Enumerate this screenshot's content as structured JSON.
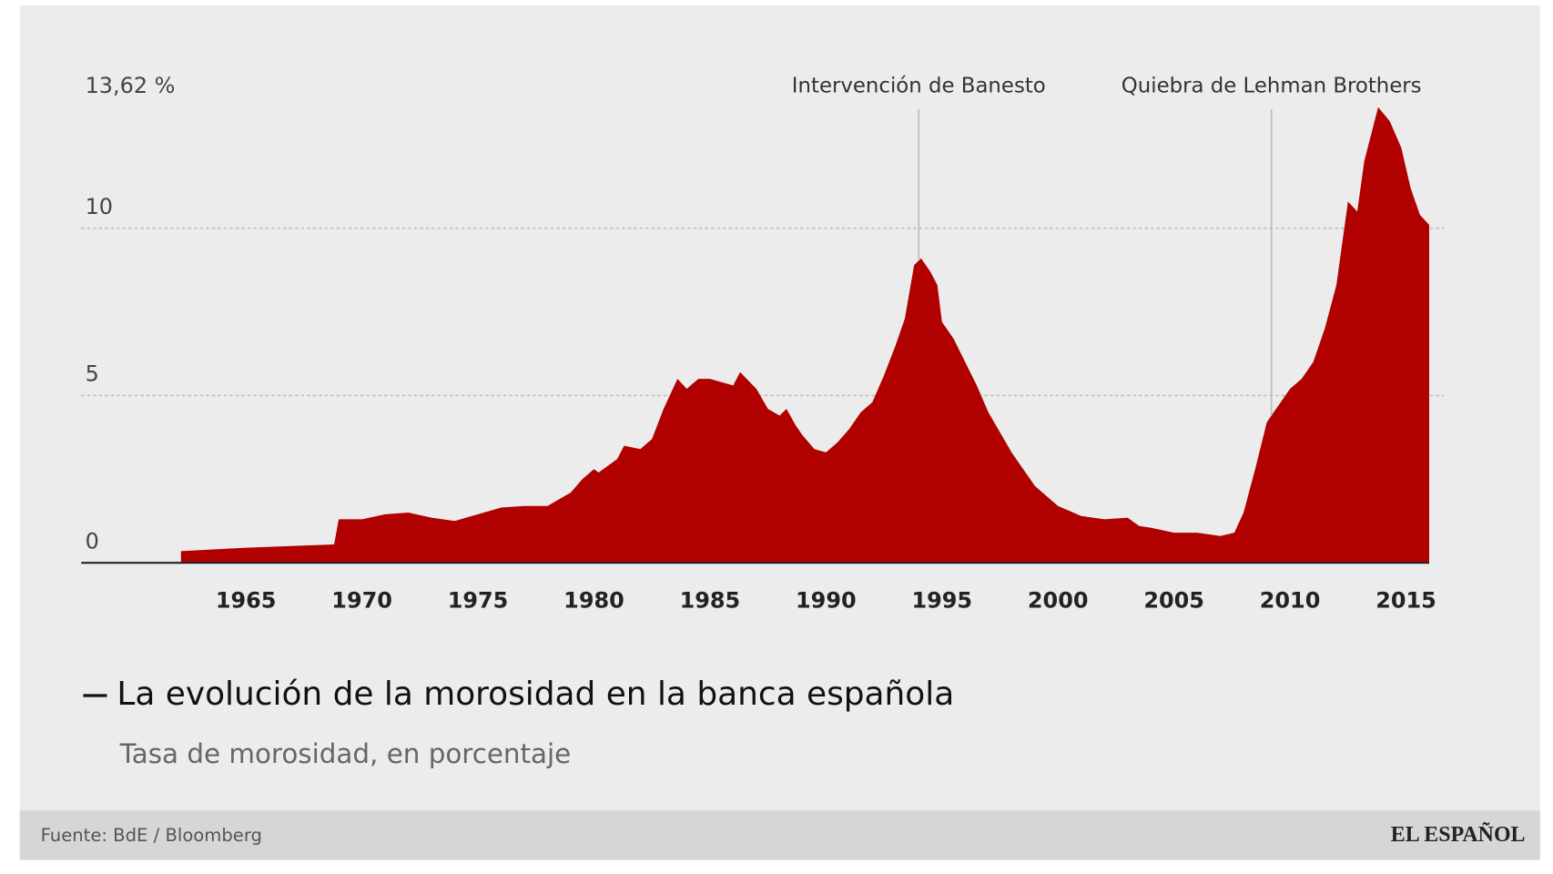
{
  "chart_data": {
    "type": "area",
    "title": "La evolución de la morosidad en la banca española",
    "subtitle": "Tasa de morosidad, en porcentaje",
    "source": "Fuente: BdE / Bloomberg",
    "brand": "EL ESPAÑOL",
    "color": "#b00000",
    "x": [
      1962.2,
      1965,
      1968.8,
      1969.0,
      1970,
      1971,
      1972,
      1973,
      1974,
      1975,
      1976,
      1977,
      1978,
      1979,
      1979.5,
      1980,
      1980.2,
      1981,
      1981.3,
      1982,
      1982.5,
      1983,
      1983.6,
      1984,
      1984.5,
      1985,
      1986,
      1986.3,
      1987,
      1987.5,
      1988,
      1988.3,
      1988.7,
      1989,
      1989.5,
      1990,
      1990.5,
      1991,
      1991.5,
      1992,
      1992.5,
      1993,
      1993.4,
      1993.8,
      1994.1,
      1994.5,
      1994.8,
      1995,
      1995.5,
      1996,
      1996.5,
      1997,
      1998,
      1999,
      2000,
      2001,
      2002,
      2003,
      2003.5,
      2004,
      2005,
      2006,
      2007,
      2007.6,
      2008,
      2008.5,
      2009,
      2009.5,
      2010,
      2010.5,
      2011,
      2011.5,
      2012,
      2012.5,
      2012.9,
      2013.2,
      2013.8,
      2014.3,
      2014.8,
      2015.2,
      2015.6,
      2016.0
    ],
    "values": [
      0.35,
      0.45,
      0.55,
      1.3,
      1.3,
      1.45,
      1.5,
      1.35,
      1.25,
      1.45,
      1.65,
      1.7,
      1.7,
      2.1,
      2.5,
      2.8,
      2.7,
      3.1,
      3.5,
      3.4,
      3.7,
      4.6,
      5.5,
      5.2,
      5.5,
      5.5,
      5.3,
      5.7,
      5.2,
      4.6,
      4.4,
      4.6,
      4.1,
      3.8,
      3.4,
      3.3,
      3.6,
      4.0,
      4.5,
      4.8,
      5.6,
      6.5,
      7.3,
      8.9,
      9.1,
      8.7,
      8.3,
      7.2,
      6.7,
      6.0,
      5.3,
      4.5,
      3.3,
      2.3,
      1.7,
      1.4,
      1.3,
      1.35,
      1.1,
      1.05,
      0.9,
      0.9,
      0.8,
      0.9,
      1.5,
      2.8,
      4.2,
      4.7,
      5.2,
      5.5,
      6.0,
      7.0,
      8.3,
      10.8,
      10.5,
      12.0,
      13.62,
      13.2,
      12.4,
      11.2,
      10.4,
      10.1
    ],
    "xlim": [
      1957.9,
      2016.0
    ],
    "xticks": [
      1965,
      1970,
      1975,
      1980,
      1985,
      1990,
      1995,
      2000,
      2005,
      2010,
      2015
    ],
    "ylim": [
      0,
      13.62
    ],
    "yticks": [
      0,
      5,
      10,
      {
        "value": 13.62,
        "label": "13,62 %"
      }
    ],
    "grid": true,
    "annotations": [
      {
        "text": "Intervención de Banesto",
        "x": 1994.0
      },
      {
        "text": "Quiebra de Lehman Brothers",
        "x": 2009.2
      }
    ]
  }
}
